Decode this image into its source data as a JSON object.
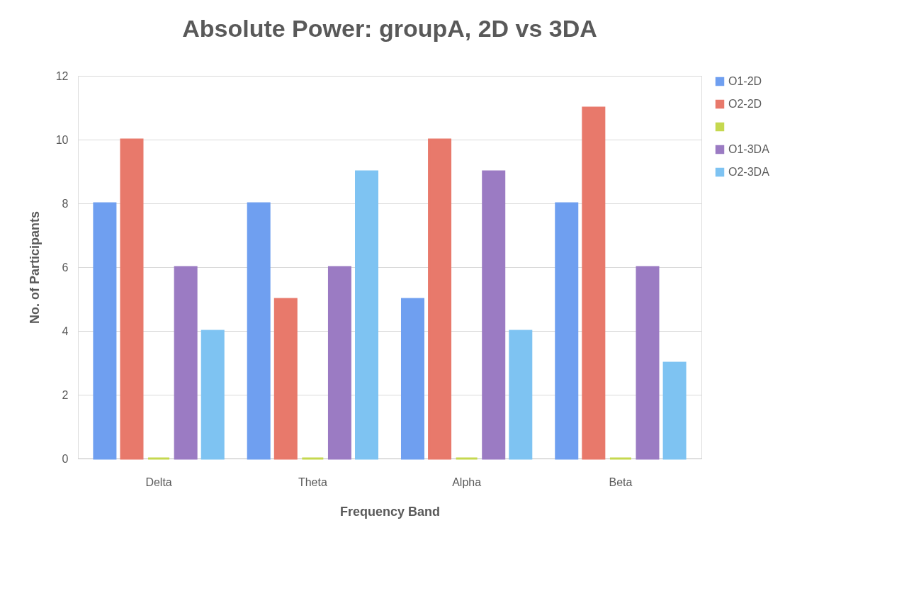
{
  "chart_data": {
    "type": "bar",
    "title": "Absolute Power: groupA, 2D vs 3DA",
    "xlabel": "Frequency Band",
    "ylabel": "No. of Participants",
    "categories": [
      "Delta",
      "Theta",
      "Alpha",
      "Beta"
    ],
    "series": [
      {
        "name": "O1-2D",
        "color": "#6f9ff0",
        "values": [
          8,
          8,
          5,
          8
        ]
      },
      {
        "name": "O2-2D",
        "color": "#e8796b",
        "values": [
          10,
          5,
          10,
          11
        ]
      },
      {
        "color": "#c5d84f",
        "values": [
          0,
          0,
          0,
          0
        ]
      },
      {
        "name": "O1-3DA",
        "color": "#9b7bc3",
        "values": [
          6,
          6,
          9,
          6
        ]
      },
      {
        "name": "O2-3DA",
        "color": "#7ec3f2",
        "values": [
          4,
          9,
          4,
          3
        ]
      }
    ],
    "ylim": [
      0,
      12
    ],
    "yticks": [
      0,
      2,
      4,
      6,
      8,
      10,
      12
    ],
    "grid": "y",
    "legend": "right"
  }
}
